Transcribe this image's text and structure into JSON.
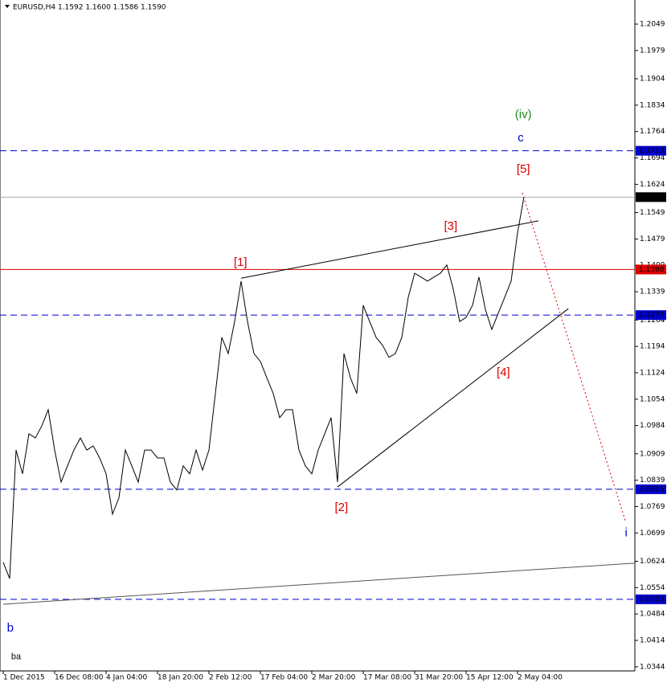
{
  "chart_data": {
    "type": "line",
    "title": "EURUSD,H4  1.1592 1.1600 1.1586 1.1590",
    "series": [
      {
        "name": "EURUSD",
        "color": "#000000",
        "values": [
          1.0621,
          1.0578,
          1.0919,
          1.0856,
          1.0962,
          1.0951,
          1.0983,
          1.1026,
          1.0919,
          1.0834,
          1.0877,
          1.0919,
          1.0951,
          1.0919,
          1.093,
          1.0898,
          1.0856,
          1.0749,
          1.0792,
          1.0919,
          1.0877,
          1.0834,
          1.0919,
          1.0919,
          1.0898,
          1.0898,
          1.0834,
          1.0813,
          1.0877,
          1.0856,
          1.0919,
          1.0866,
          1.0919,
          1.1069,
          1.1218,
          1.1175,
          1.126,
          1.1367,
          1.126,
          1.1175,
          1.1154,
          1.1111,
          1.1069,
          1.1005,
          1.1026,
          1.1026,
          1.0919,
          1.0877,
          1.0856,
          1.0919,
          1.0962,
          1.1005,
          1.0834,
          1.1175,
          1.1111,
          1.1069,
          1.1303,
          1.126,
          1.1218,
          1.1197,
          1.1165,
          1.1175,
          1.1218,
          1.1324,
          1.1388,
          1.1378,
          1.1367,
          1.1378,
          1.1388,
          1.141,
          1.1346,
          1.126,
          1.1271,
          1.1303,
          1.1378,
          1.1292,
          1.1239,
          1.1282,
          1.1324,
          1.1367,
          1.1495,
          1.1591
        ]
      }
    ],
    "xlim": [
      0,
      98.25
    ],
    "ylim": [
      1.0333,
      1.2113
    ],
    "xticks": [
      {
        "value": 0,
        "label": "1 Dec 2015"
      },
      {
        "value": 8,
        "label": "16 Dec 08:00"
      },
      {
        "value": 16,
        "label": "4 Jan 04:00"
      },
      {
        "value": 24,
        "label": "18 Jan 20:00"
      },
      {
        "value": 32,
        "label": "2 Feb 12:00"
      },
      {
        "value": 40,
        "label": "17 Feb 04:00"
      },
      {
        "value": 48,
        "label": "2 Mar 20:00"
      },
      {
        "value": 56,
        "label": "17 Mar 08:00"
      },
      {
        "value": 64,
        "label": "31 Mar 20:00"
      },
      {
        "value": 72,
        "label": "15 Apr 12:00"
      },
      {
        "value": 80,
        "label": "2 May 04:00"
      }
    ],
    "yticks": [
      1.2049,
      1.1979,
      1.1904,
      1.1834,
      1.1764,
      1.1694,
      1.1624,
      1.1549,
      1.1479,
      1.1409,
      1.1339,
      1.1264,
      1.1194,
      1.1124,
      1.1054,
      1.0984,
      1.0909,
      1.0839,
      1.0769,
      1.0699,
      1.0624,
      1.0554,
      1.0484,
      1.0414,
      1.0344
    ],
    "levels": [
      {
        "value": 1.1713,
        "color": "#0000cc",
        "style": "dashed"
      },
      {
        "value": 1.159,
        "color": "#000000",
        "style": "solid"
      },
      {
        "value": 1.1398,
        "color": "#dd0000",
        "style": "solid"
      },
      {
        "value": 1.1277,
        "color": "#0000cc",
        "style": "dashed"
      },
      {
        "value": 1.0815,
        "color": "#0000cc",
        "style": "dashed"
      },
      {
        "value": 1.0523,
        "color": "#0000cc",
        "style": "dashed"
      }
    ],
    "trendlines": [
      {
        "x": [
          37,
          83.25
        ],
        "y": [
          1.1375,
          1.1527
        ],
        "color": "#000000",
        "style": "solid"
      },
      {
        "x": [
          52,
          87.9
        ],
        "y": [
          1.0821,
          1.1294
        ],
        "color": "#000000",
        "style": "solid"
      },
      {
        "x": [
          0,
          98.25
        ],
        "y": [
          1.051,
          1.0619
        ],
        "color": "#555555",
        "style": "solid"
      },
      {
        "x": [
          80.75,
          96.75
        ],
        "y": [
          1.1601,
          1.0732
        ],
        "color": "#dd0000",
        "style": "dotted"
      }
    ],
    "annotations": [
      {
        "text": "(iv)",
        "x": 80.9,
        "y": 1.1808,
        "color": "#228b22"
      },
      {
        "text": "c",
        "x": 80.5,
        "y": 1.1746,
        "color": "#0000cc"
      },
      {
        "text": "[5]",
        "x": 80.9,
        "y": 1.1663,
        "color": "#dd0000"
      },
      {
        "text": "[3]",
        "x": 69.6,
        "y": 1.1512,
        "color": "#dd0000"
      },
      {
        "text": "[1]",
        "x": 36.9,
        "y": 1.1416,
        "color": "#dd0000"
      },
      {
        "text": "[4]",
        "x": 77.8,
        "y": 1.1124,
        "color": "#dd0000"
      },
      {
        "text": "[2]",
        "x": 52.6,
        "y": 1.0766,
        "color": "#dd0000"
      },
      {
        "text": "i",
        "x": 96.9,
        "y": 1.0698,
        "color": "#0000cc"
      },
      {
        "text": "b",
        "x": 1.1,
        "y": 1.0446,
        "color": "#0000cc"
      },
      {
        "text": "ba",
        "x": 2.0,
        "y": 1.037,
        "color": "#000000"
      }
    ]
  }
}
